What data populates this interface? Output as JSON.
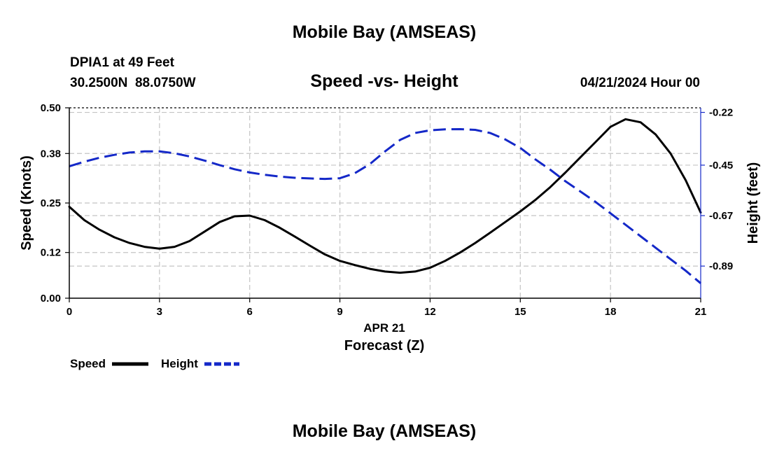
{
  "chart_data": {
    "type": "line",
    "title": "Mobile Bay (AMSEAS)",
    "subtitle": "Speed -vs- Height",
    "footer_title": "Mobile Bay (AMSEAS)",
    "station_line1": "DPIA1 at 49 Feet",
    "station_line2": "30.2500N  88.0750W",
    "datetime": "04/21/2024 Hour 00",
    "xlabel_date": "APR 21",
    "xlabel": "Forecast (Z)",
    "ylabel_left": "Speed (Knots)",
    "ylabel_right": "Height (feet)",
    "x_ticks": [
      "0",
      "3",
      "6",
      "9",
      "12",
      "15",
      "18",
      "21"
    ],
    "x_range": [
      0,
      21
    ],
    "y_left_ticks": [
      "0.00",
      "0.12",
      "0.25",
      "0.38",
      "0.50"
    ],
    "y_left_range": [
      0,
      0.5
    ],
    "y_right_ticks": [
      "-0.22",
      "-0.45",
      "-0.67",
      "-0.89"
    ],
    "y_right_range": [
      -1.03,
      -0.2
    ],
    "grid": true,
    "legend_position": "bottom-left",
    "series": [
      {
        "name": "Speed",
        "axis": "left",
        "color": "#000000",
        "style": "solid",
        "x": [
          0,
          0.5,
          1,
          1.5,
          2,
          2.5,
          3,
          3.5,
          4,
          4.5,
          5,
          5.5,
          6,
          6.5,
          7,
          7.5,
          8,
          8.5,
          9,
          9.5,
          10,
          10.5,
          11,
          11.5,
          12,
          12.5,
          13,
          13.5,
          14,
          14.5,
          15,
          15.5,
          16,
          16.5,
          17,
          17.5,
          18,
          18.5,
          19,
          19.5,
          20,
          20.5,
          21
        ],
        "values": [
          0.24,
          0.205,
          0.18,
          0.16,
          0.145,
          0.135,
          0.13,
          0.135,
          0.15,
          0.175,
          0.2,
          0.215,
          0.217,
          0.205,
          0.185,
          0.162,
          0.138,
          0.115,
          0.098,
          0.087,
          0.077,
          0.07,
          0.067,
          0.07,
          0.08,
          0.098,
          0.12,
          0.145,
          0.172,
          0.2,
          0.228,
          0.258,
          0.292,
          0.33,
          0.37,
          0.41,
          0.45,
          0.47,
          0.462,
          0.43,
          0.38,
          0.31,
          0.225
        ]
      },
      {
        "name": "Height",
        "axis": "right",
        "color": "#1428c8",
        "style": "dashed",
        "x": [
          0,
          0.5,
          1,
          1.5,
          2,
          2.5,
          3,
          3.5,
          4,
          4.5,
          5,
          5.5,
          6,
          6.5,
          7,
          7.5,
          8,
          8.5,
          9,
          9.5,
          10,
          10.5,
          11,
          11.5,
          12,
          12.5,
          13,
          13.5,
          14,
          14.5,
          15,
          15.5,
          16,
          16.5,
          17,
          17.5,
          18,
          18.5,
          19,
          19.5,
          20,
          20.5,
          21
        ],
        "values": [
          -0.455,
          -0.435,
          -0.418,
          -0.405,
          -0.395,
          -0.39,
          -0.39,
          -0.398,
          -0.412,
          -0.43,
          -0.45,
          -0.468,
          -0.482,
          -0.492,
          -0.5,
          -0.505,
          -0.508,
          -0.51,
          -0.507,
          -0.485,
          -0.445,
          -0.39,
          -0.34,
          -0.31,
          -0.298,
          -0.294,
          -0.293,
          -0.296,
          -0.31,
          -0.338,
          -0.375,
          -0.425,
          -0.47,
          -0.52,
          -0.565,
          -0.61,
          -0.66,
          -0.71,
          -0.76,
          -0.81,
          -0.86,
          -0.91,
          -0.965
        ]
      }
    ]
  },
  "legend": {
    "speed_label": "Speed",
    "height_label": "Height"
  }
}
